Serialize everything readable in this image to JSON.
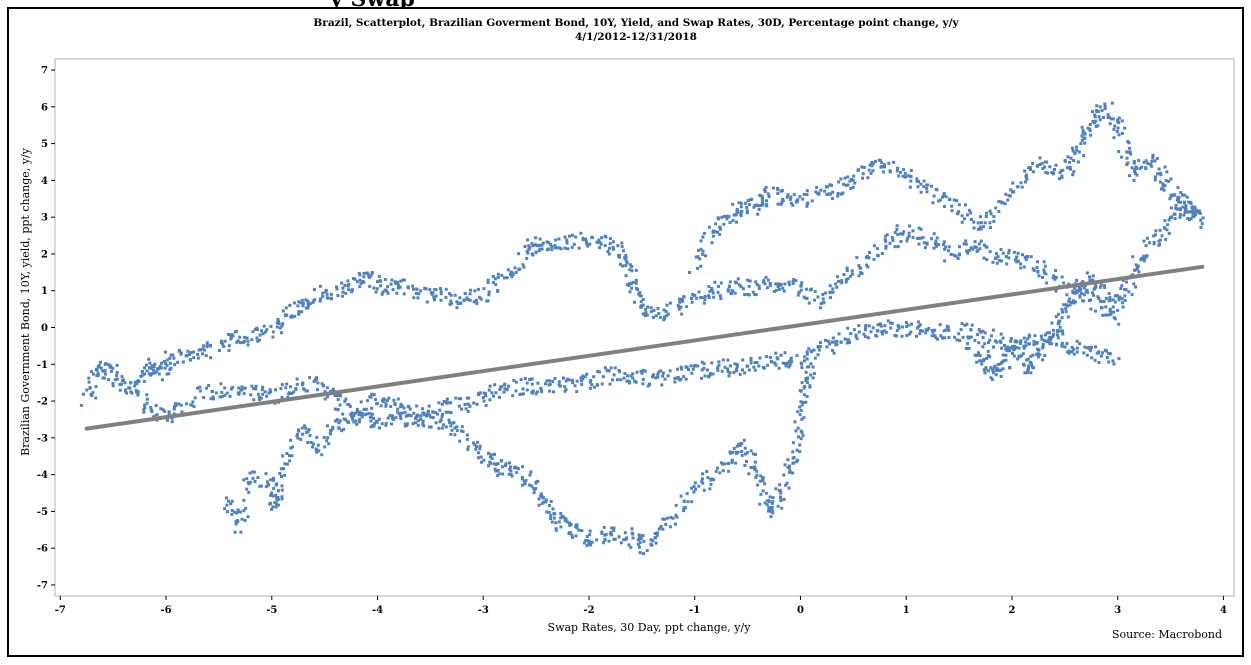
{
  "page": {
    "cut_heading": "y Swap",
    "source": "Source: Macrobond"
  },
  "chart_data": {
    "type": "scatter",
    "title": "Brazil, Scatterplot, Brazilian Goverment Bond, 10Y, Yield, and Swap Rates, 30D, Percentage point change, y/y",
    "subtitle": "4/1/2012-12/31/2018",
    "xlabel": "Swap Rates, 30 Day, ppt change, y/y",
    "ylabel": "Brazilian Government Bond, 10Y, yield, ppt change, y/y",
    "xlim": [
      -7.05,
      4.1
    ],
    "ylim": [
      -7.3,
      7.3
    ],
    "xticks": [
      -7,
      -6,
      -5,
      -4,
      -3,
      -2,
      -1,
      0,
      1,
      2,
      3,
      4
    ],
    "yticks": [
      -7,
      -6,
      -5,
      -4,
      -3,
      -2,
      -1,
      0,
      1,
      2,
      3,
      4,
      5,
      6,
      7
    ],
    "grid": false,
    "point_color": "#4f81bd",
    "trend_color": "#808080",
    "trend_line": {
      "x": [
        -6.75,
        3.8
      ],
      "y": [
        -2.75,
        1.65
      ]
    },
    "point_paths": [
      [
        [
          -6.75,
          -2.0
        ],
        [
          -6.65,
          -1.3
        ],
        [
          -6.55,
          -1.0
        ],
        [
          -6.45,
          -1.5
        ],
        [
          -6.3,
          -1.6
        ],
        [
          -6.15,
          -1.0
        ],
        [
          -6.05,
          -1.3
        ],
        [
          -5.95,
          -0.8
        ],
        [
          -5.75,
          -0.7
        ],
        [
          -5.55,
          -0.6
        ],
        [
          -5.35,
          -0.35
        ],
        [
          -5.15,
          -0.25
        ],
        [
          -4.95,
          0.05
        ],
        [
          -4.8,
          0.5
        ],
        [
          -4.65,
          0.75
        ],
        [
          -4.45,
          0.95
        ],
        [
          -4.25,
          1.1
        ],
        [
          -4.1,
          1.35
        ],
        [
          -3.95,
          1.1
        ],
        [
          -3.8,
          1.15
        ],
        [
          -3.6,
          0.9
        ],
        [
          -3.4,
          0.85
        ],
        [
          -3.2,
          0.7
        ],
        [
          -3.0,
          0.95
        ],
        [
          -2.8,
          1.3
        ],
        [
          -2.6,
          1.9
        ],
        [
          -2.5,
          2.35
        ],
        [
          -2.3,
          2.2
        ],
        [
          -2.1,
          2.35
        ],
        [
          -1.85,
          2.3
        ],
        [
          -1.7,
          2.1
        ],
        [
          -1.6,
          1.5
        ],
        [
          -1.55,
          0.8
        ],
        [
          -1.4,
          0.4
        ],
        [
          -1.2,
          0.5
        ],
        [
          -1.0,
          0.8
        ],
        [
          -0.8,
          1.0
        ],
        [
          -0.6,
          1.1
        ],
        [
          -0.4,
          1.1
        ],
        [
          -0.2,
          1.2
        ],
        [
          0.0,
          1.0
        ],
        [
          0.2,
          0.7
        ],
        [
          0.4,
          1.3
        ],
        [
          0.6,
          1.8
        ],
        [
          0.8,
          2.3
        ],
        [
          1.0,
          2.6
        ],
        [
          1.2,
          2.4
        ],
        [
          1.4,
          2.0
        ],
        [
          1.6,
          2.2
        ],
        [
          1.8,
          2.0
        ],
        [
          2.0,
          1.9
        ],
        [
          2.2,
          1.7
        ],
        [
          2.4,
          1.3
        ],
        [
          2.6,
          1.0
        ],
        [
          2.8,
          0.6
        ],
        [
          3.0,
          0.2
        ]
      ],
      [
        [
          -6.3,
          -1.6
        ],
        [
          -6.15,
          -2.2
        ],
        [
          -5.95,
          -2.4
        ],
        [
          -5.7,
          -1.8
        ],
        [
          -5.45,
          -1.65
        ],
        [
          -5.2,
          -1.7
        ],
        [
          -5.0,
          -1.9
        ],
        [
          -4.8,
          -1.6
        ],
        [
          -4.6,
          -1.5
        ],
        [
          -4.4,
          -2.0
        ],
        [
          -4.2,
          -2.3
        ],
        [
          -4.0,
          -2.0
        ],
        [
          -3.8,
          -2.1
        ],
        [
          -3.6,
          -2.3
        ],
        [
          -3.4,
          -2.2
        ],
        [
          -3.2,
          -2.1
        ],
        [
          -3.0,
          -1.9
        ],
        [
          -2.8,
          -1.7
        ],
        [
          -2.6,
          -1.6
        ],
        [
          -2.4,
          -1.6
        ],
        [
          -2.2,
          -1.6
        ],
        [
          -2.0,
          -1.5
        ],
        [
          -1.8,
          -1.3
        ],
        [
          -1.6,
          -1.3
        ],
        [
          -1.4,
          -1.4
        ],
        [
          -1.2,
          -1.3
        ],
        [
          -1.0,
          -1.2
        ],
        [
          -0.8,
          -1.1
        ],
        [
          -0.6,
          -1.1
        ],
        [
          -0.4,
          -1.0
        ],
        [
          -0.2,
          -0.9
        ],
        [
          0.0,
          -0.9
        ],
        [
          0.2,
          -0.6
        ],
        [
          0.4,
          -0.3
        ],
        [
          0.6,
          -0.1
        ],
        [
          0.8,
          0.0
        ],
        [
          1.0,
          -0.1
        ],
        [
          1.2,
          0.0
        ],
        [
          1.4,
          -0.2
        ],
        [
          1.6,
          -0.1
        ],
        [
          1.8,
          -0.3
        ],
        [
          2.0,
          -0.5
        ],
        [
          2.2,
          -0.4
        ],
        [
          2.4,
          -0.3
        ],
        [
          2.6,
          -0.6
        ],
        [
          2.8,
          -0.7
        ],
        [
          3.0,
          -0.8
        ]
      ],
      [
        [
          -5.45,
          -4.6
        ],
        [
          -5.3,
          -5.5
        ],
        [
          -5.2,
          -4.0
        ],
        [
          -5.0,
          -4.2
        ],
        [
          -4.95,
          -5.0
        ],
        [
          -4.85,
          -3.6
        ],
        [
          -4.7,
          -2.8
        ],
        [
          -4.55,
          -3.3
        ],
        [
          -4.4,
          -2.7
        ],
        [
          -4.2,
          -2.4
        ],
        [
          -4.0,
          -2.6
        ],
        [
          -3.8,
          -2.5
        ],
        [
          -3.6,
          -2.4
        ],
        [
          -3.4,
          -2.7
        ],
        [
          -3.2,
          -2.8
        ],
        [
          -3.0,
          -3.5
        ],
        [
          -2.85,
          -3.8
        ],
        [
          -2.7,
          -3.9
        ],
        [
          -2.55,
          -4.2
        ],
        [
          -2.4,
          -4.8
        ],
        [
          -2.3,
          -5.3
        ],
        [
          -2.15,
          -5.5
        ],
        [
          -2.0,
          -5.8
        ],
        [
          -1.8,
          -5.6
        ],
        [
          -1.6,
          -5.7
        ],
        [
          -1.45,
          -6.0
        ],
        [
          -1.3,
          -5.4
        ],
        [
          -1.1,
          -4.8
        ],
        [
          -0.9,
          -4.2
        ],
        [
          -0.7,
          -3.7
        ],
        [
          -0.55,
          -3.2
        ],
        [
          -0.45,
          -3.8
        ],
        [
          -0.35,
          -4.6
        ],
        [
          -0.25,
          -5.0
        ],
        [
          -0.15,
          -4.3
        ],
        [
          -0.05,
          -3.5
        ],
        [
          0.0,
          -2.5
        ],
        [
          0.05,
          -1.5
        ],
        [
          0.1,
          -1.0
        ]
      ],
      [
        [
          -1.0,
          1.6
        ],
        [
          -0.85,
          2.5
        ],
        [
          -0.7,
          3.0
        ],
        [
          -0.55,
          3.2
        ],
        [
          -0.4,
          3.3
        ],
        [
          -0.3,
          3.6
        ],
        [
          -0.1,
          3.5
        ],
        [
          0.1,
          3.5
        ],
        [
          0.3,
          3.7
        ],
        [
          0.5,
          4.0
        ],
        [
          0.7,
          4.4
        ],
        [
          0.9,
          4.3
        ],
        [
          1.1,
          3.9
        ],
        [
          1.3,
          3.6
        ],
        [
          1.5,
          3.2
        ],
        [
          1.7,
          2.8
        ],
        [
          1.9,
          3.3
        ],
        [
          2.1,
          4.0
        ],
        [
          2.3,
          4.4
        ],
        [
          2.5,
          4.2
        ],
        [
          2.6,
          4.7
        ],
        [
          2.7,
          5.3
        ],
        [
          2.8,
          5.8
        ],
        [
          2.95,
          5.9
        ],
        [
          3.05,
          5.0
        ],
        [
          3.15,
          4.2
        ],
        [
          3.3,
          4.5
        ],
        [
          3.45,
          4.0
        ],
        [
          3.55,
          3.5
        ],
        [
          3.7,
          3.1
        ],
        [
          3.8,
          2.9
        ]
      ],
      [
        [
          1.6,
          -0.4
        ],
        [
          1.75,
          -0.9
        ],
        [
          1.85,
          -1.2
        ],
        [
          1.95,
          -0.9
        ],
        [
          2.05,
          -0.5
        ],
        [
          2.15,
          -1.1
        ],
        [
          2.25,
          -0.7
        ],
        [
          2.4,
          -0.2
        ],
        [
          2.5,
          0.4
        ],
        [
          2.6,
          0.9
        ],
        [
          2.7,
          1.3
        ],
        [
          2.85,
          1.0
        ],
        [
          3.0,
          0.6
        ],
        [
          3.1,
          1.1
        ],
        [
          3.2,
          1.8
        ],
        [
          3.35,
          2.4
        ],
        [
          3.5,
          2.9
        ],
        [
          3.65,
          3.5
        ],
        [
          3.75,
          3.0
        ]
      ]
    ]
  }
}
